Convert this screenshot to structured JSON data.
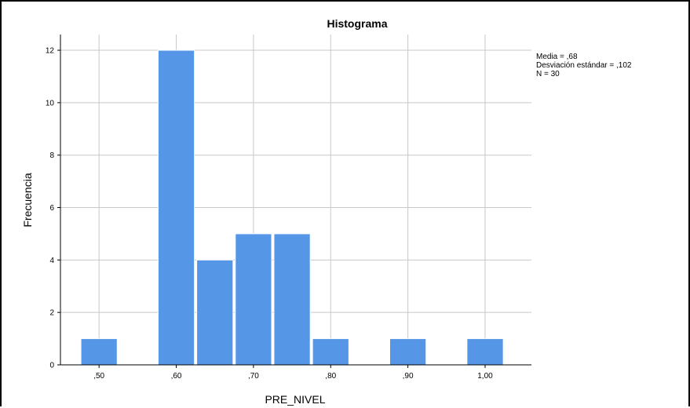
{
  "chart_data": {
    "type": "bar",
    "title": "Histograma",
    "xlabel": "PRE_NIVEL",
    "ylabel": "Frecuencia",
    "bins": [
      {
        "x": 0.5,
        "value": 1
      },
      {
        "x": 0.6,
        "value": 12
      },
      {
        "x": 0.65,
        "value": 4
      },
      {
        "x": 0.7,
        "value": 5
      },
      {
        "x": 0.75,
        "value": 5
      },
      {
        "x": 0.8,
        "value": 1
      },
      {
        "x": 0.9,
        "value": 1
      },
      {
        "x": 1.0,
        "value": 1
      }
    ],
    "bin_width": 0.047,
    "xlim": [
      0.45,
      1.06
    ],
    "ylim": [
      0,
      12.6
    ],
    "x_ticks": [
      {
        "value": 0.5,
        "label": ",50"
      },
      {
        "value": 0.6,
        "label": ",60"
      },
      {
        "value": 0.7,
        "label": ",70"
      },
      {
        "value": 0.8,
        "label": ",80"
      },
      {
        "value": 0.9,
        "label": ",90"
      },
      {
        "value": 1.0,
        "label": "1,00"
      }
    ],
    "y_ticks": [
      0,
      2,
      4,
      6,
      8,
      10,
      12
    ],
    "grid": true,
    "bar_color": "#5596e6",
    "stats": {
      "mean": "Media = ,68",
      "std": "Desviación estándar = ,102",
      "n": "N = 30"
    }
  }
}
